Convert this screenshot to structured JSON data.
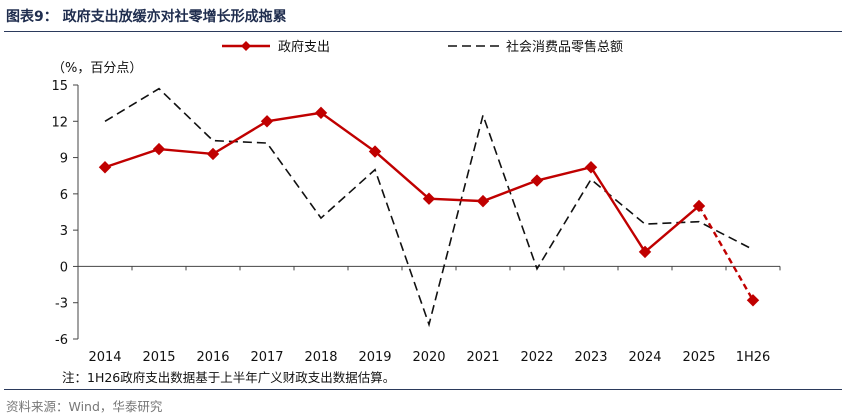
{
  "header": {
    "title": "图表9： 政府支出放缓亦对社零增长形成拖累"
  },
  "footer": {
    "note": "注：1H26政府支出数据基于上半年广义财政支出数据估算。",
    "source": "资料来源：Wind，华泰研究"
  },
  "chart_data": {
    "type": "line",
    "unit_label": "（%，百分点）",
    "categories": [
      "2014",
      "2015",
      "2016",
      "2017",
      "2018",
      "2019",
      "2020",
      "2021",
      "2022",
      "2023",
      "2024",
      "2025",
      "1H26"
    ],
    "ylim": [
      -6,
      15
    ],
    "yticks": [
      15,
      12,
      9,
      6,
      3,
      0,
      -3,
      -6
    ],
    "ytick_labels": [
      "15",
      "12",
      "9",
      "6",
      "3",
      "0",
      "-3",
      "-6"
    ],
    "legend_position": "top",
    "grid": false,
    "series": [
      {
        "name": "政府支出",
        "color": "#c00000",
        "marker": "diamond",
        "dashed_last_segment": true,
        "values": [
          8.2,
          9.7,
          9.3,
          12.0,
          12.7,
          9.5,
          5.6,
          5.4,
          7.1,
          8.2,
          1.2,
          5.0,
          -2.8
        ]
      },
      {
        "name": "社会消费品零售总额",
        "color": "#111111",
        "dashed": true,
        "values": [
          12.0,
          14.7,
          10.4,
          10.2,
          4.0,
          8.0,
          -4.8,
          12.5,
          -0.2,
          7.2,
          3.5,
          3.7,
          1.4
        ]
      }
    ]
  }
}
